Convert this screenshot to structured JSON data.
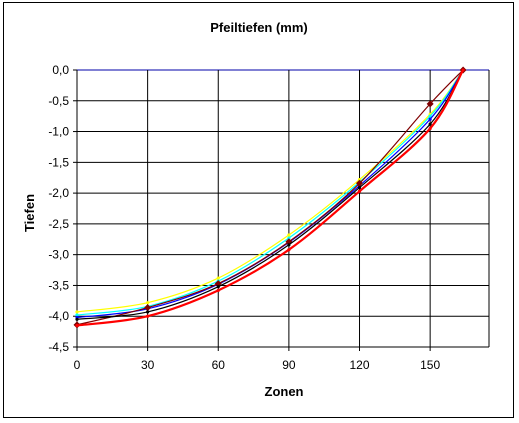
{
  "chart_data": {
    "type": "line",
    "title": "Pfeiltiefen (mm)",
    "xlabel": "Zonen",
    "ylabel": "Tiefen",
    "xlim": [
      0,
      175
    ],
    "ylim": [
      -4.5,
      0.0
    ],
    "x_ticks": [
      "0",
      "30",
      "60",
      "90",
      "120",
      "150"
    ],
    "x_tick_values": [
      0,
      30,
      60,
      90,
      120,
      150
    ],
    "y_ticks": [
      "0,0",
      "-0,5",
      "-1,0",
      "-1,5",
      "-2,0",
      "-2,5",
      "-3,0",
      "-3,5",
      "-4,0",
      "-4,5"
    ],
    "y_tick_values": [
      0.0,
      -0.5,
      -1.0,
      -1.5,
      -2.0,
      -2.5,
      -3.0,
      -3.5,
      -4.0,
      -4.5
    ],
    "grid": true,
    "legend": "none",
    "series": [
      {
        "color": "#ffff00",
        "x": [
          0,
          30,
          60,
          90,
          120,
          150,
          164
        ],
        "y": [
          -3.93,
          -3.78,
          -3.38,
          -2.68,
          -1.78,
          -0.72,
          0.0
        ]
      },
      {
        "color": "#00ffff",
        "x": [
          0,
          30,
          60,
          90,
          120,
          150,
          164
        ],
        "y": [
          -3.98,
          -3.84,
          -3.43,
          -2.73,
          -1.82,
          -0.75,
          0.0
        ]
      },
      {
        "color": "#0000ff",
        "x": [
          0,
          30,
          60,
          90,
          120,
          150,
          164
        ],
        "y": [
          -4.02,
          -3.88,
          -3.48,
          -2.8,
          -1.88,
          -0.8,
          0.0
        ]
      },
      {
        "color": "#800000",
        "x": [
          0,
          30,
          60,
          90,
          120,
          150,
          164
        ],
        "y": [
          -4.14,
          -3.86,
          -3.47,
          -2.79,
          -1.84,
          -0.55,
          0.0
        ]
      },
      {
        "color": "#000000",
        "x": [
          0,
          30,
          60,
          90,
          120,
          150,
          164
        ],
        "y": [
          -4.05,
          -3.93,
          -3.52,
          -2.84,
          -1.91,
          -0.88,
          0.0
        ]
      },
      {
        "color": "#ff0000",
        "x": [
          0,
          30,
          60,
          90,
          120,
          150,
          164
        ],
        "y": [
          -4.15,
          -4.0,
          -3.58,
          -2.92,
          -1.97,
          -0.95,
          0.0
        ]
      }
    ]
  }
}
